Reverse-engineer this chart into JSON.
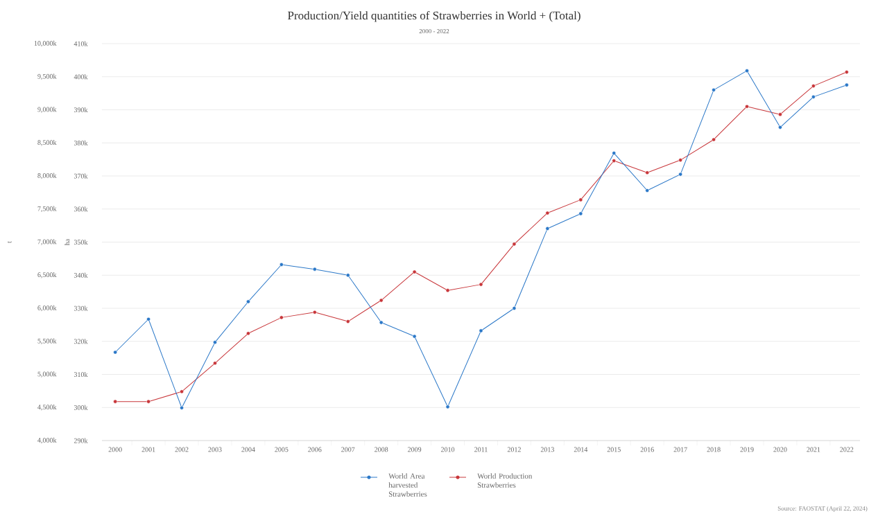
{
  "chart_data": {
    "type": "line",
    "title": "Production/Yield quantities of Strawberries in World + (Total)",
    "subtitle": "2000 - 2022",
    "ylabel": "t",
    "y2label": "ha",
    "categories": [
      "2000",
      "2001",
      "2002",
      "2003",
      "2004",
      "2005",
      "2006",
      "2007",
      "2008",
      "2009",
      "2010",
      "2011",
      "2012",
      "2013",
      "2014",
      "2015",
      "2016",
      "2017",
      "2018",
      "2019",
      "2020",
      "2021",
      "2022"
    ],
    "series": [
      {
        "name": "World Area harvested Strawberries",
        "color": "#2b78c8",
        "axis": "y2",
        "values": [
          316700,
          326700,
          299900,
          319700,
          332000,
          343200,
          341800,
          340000,
          325700,
          321500,
          300200,
          323200,
          330000,
          354100,
          358600,
          376900,
          365600,
          370500,
          396000,
          401800,
          384700,
          393900,
          397500
        ]
      },
      {
        "name": "World Production Strawberries",
        "color": "#c8363a",
        "values": [
          4590000,
          4590000,
          4740000,
          5170000,
          5620000,
          5860000,
          5940000,
          5800000,
          6120000,
          6550000,
          6270000,
          6360000,
          6970000,
          7440000,
          7640000,
          8230000,
          8050000,
          8240000,
          8550000,
          9050000,
          8930000,
          9360000,
          9570000
        ]
      }
    ],
    "ylim": [
      4000000,
      10000000
    ],
    "yticks": [
      {
        "value": 4000000,
        "label": "4,000k"
      },
      {
        "value": 4500000,
        "label": "4,500k"
      },
      {
        "value": 5000000,
        "label": "5,000k"
      },
      {
        "value": 5500000,
        "label": "5,500k"
      },
      {
        "value": 6000000,
        "label": "6,000k"
      },
      {
        "value": 6500000,
        "label": "6,500k"
      },
      {
        "value": 7000000,
        "label": "7,000k"
      },
      {
        "value": 7500000,
        "label": "7,500k"
      },
      {
        "value": 8000000,
        "label": "8,000k"
      },
      {
        "value": 8500000,
        "label": "8,500k"
      },
      {
        "value": 9000000,
        "label": "9,000k"
      },
      {
        "value": 9500000,
        "label": "9,500k"
      },
      {
        "value": 10000000,
        "label": "10,000k"
      }
    ],
    "y2lim": [
      290000,
      410000
    ],
    "y2ticks": [
      {
        "value": 290000,
        "label": "290k"
      },
      {
        "value": 300000,
        "label": "300k"
      },
      {
        "value": 310000,
        "label": "310k"
      },
      {
        "value": 320000,
        "label": "320k"
      },
      {
        "value": 330000,
        "label": "330k"
      },
      {
        "value": 340000,
        "label": "340k"
      },
      {
        "value": 350000,
        "label": "350k"
      },
      {
        "value": 360000,
        "label": "360k"
      },
      {
        "value": 370000,
        "label": "370k"
      },
      {
        "value": 380000,
        "label": "380k"
      },
      {
        "value": 390000,
        "label": "390k"
      },
      {
        "value": 400000,
        "label": "400k"
      },
      {
        "value": 410000,
        "label": "410k"
      }
    ],
    "grid": "y",
    "legend": "bottom",
    "marker": "circle",
    "line_style": "solid",
    "annotations": [
      "Source: FAOSTAT (April 22, 2024)"
    ]
  }
}
